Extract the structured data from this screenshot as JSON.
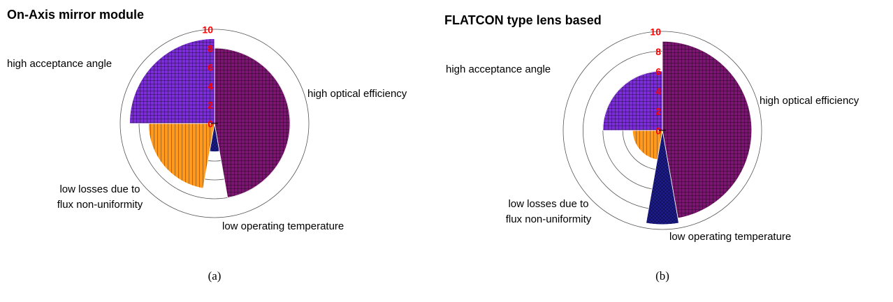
{
  "chart_data": [
    {
      "type": "polar-area",
      "title": "On-Axis mirror module",
      "caption": "(a)",
      "categories": [
        "high optical efficiency",
        "low operating temperature",
        [
          "low losses due to",
          "flux non-uniformity"
        ],
        "high acceptance angle"
      ],
      "values": [
        8,
        3,
        7,
        9
      ],
      "widths": [
        170,
        20,
        80,
        90
      ],
      "colors": [
        "#7a1670",
        "#1c1c8e",
        "#ff9a1e",
        "#7b2ed8"
      ],
      "rlim": [
        0,
        10
      ],
      "rticks": [
        0,
        2,
        4,
        6,
        8,
        10
      ],
      "grid": true
    },
    {
      "type": "polar-area",
      "title": "FLATCON type lens based",
      "caption": "(b)",
      "categories": [
        "high optical efficiency",
        "low operating temperature",
        [
          "low losses due to",
          "flux non-uniformity"
        ],
        "high acceptance angle"
      ],
      "values": [
        9,
        9.5,
        3,
        6
      ],
      "widths": [
        170,
        20,
        80,
        90
      ],
      "colors": [
        "#7a1670",
        "#1c1c8e",
        "#ff9a1e",
        "#7b2ed8"
      ],
      "rlim": [
        0,
        10
      ],
      "rticks": [
        0,
        2,
        4,
        6,
        8,
        10
      ],
      "grid": true
    }
  ]
}
